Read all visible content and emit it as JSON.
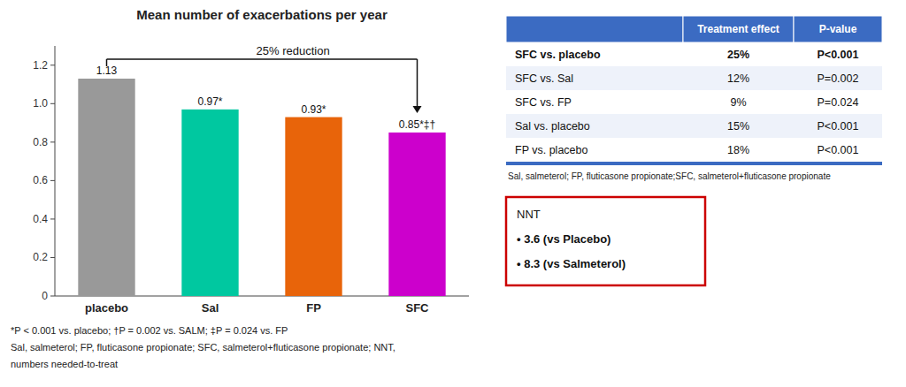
{
  "chart_data": {
    "type": "bar",
    "title": "Mean number of exacerbations per year",
    "categories": [
      "placebo",
      "Sal",
      "FP",
      "SFC"
    ],
    "values": [
      1.13,
      0.97,
      0.93,
      0.85
    ],
    "value_labels": [
      "1.13",
      "0.97*",
      "0.93*",
      "0.85*‡†"
    ],
    "data_labels": true,
    "colors": [
      "#999999",
      "#00C8A0",
      "#E8640A",
      "#CC00CC"
    ],
    "ylim": [
      0,
      1.3
    ],
    "yticks": [
      0,
      0.2,
      0.4,
      0.6,
      0.8,
      {
        "value": 1,
        "label": "1.0"
      },
      1.2
    ],
    "annotations": [
      {
        "text": "25% reduction"
      }
    ],
    "footnotes": [
      "*P < 0.001 vs. placebo; †P = 0.002 vs. SALM; ‡P = 0.024 vs. FP",
      "Sal, salmeterol; FP, fluticasone propionate; SFC, salmeterol+fluticasone propionate;  NNT,",
      "numbers needed-to-treat"
    ],
    "table": {
      "columns": [
        "Treatment effect",
        "P-value"
      ],
      "rows": [
        {
          "label": "SFC vs. placebo",
          "effect": "25%",
          "pvalue": "P<0.001",
          "bold": true
        },
        {
          "label": "SFC vs. Sal",
          "effect": "12%",
          "pvalue": "P=0.002",
          "bold": false
        },
        {
          "label": "SFC vs. FP",
          "effect": "9%",
          "pvalue": "P=0.024",
          "bold": false
        },
        {
          "label": "Sal vs. placebo",
          "effect": "15%",
          "pvalue": "P<0.001",
          "bold": false
        },
        {
          "label": "FP vs. placebo",
          "effect": "18%",
          "pvalue": "P<0.001",
          "bold": false
        }
      ],
      "footnote": "Sal, salmeterol; FP, fluticasone propionate;SFC, salmeterol+fluticasone propionate"
    },
    "nnt_box": {
      "title": "NNT",
      "items": [
        "• 3.6 (vs Placebo)",
        "• 8.3 (vs Salmeterol)"
      ],
      "color": "#CC0000"
    }
  }
}
